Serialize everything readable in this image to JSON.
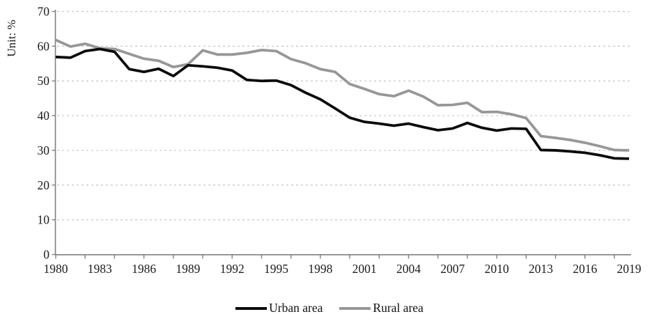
{
  "chart_data": {
    "type": "line",
    "title": "",
    "unit_label": "Unit: %",
    "x_range": [
      1980,
      2019
    ],
    "x": [
      1980,
      1981,
      1982,
      1983,
      1984,
      1985,
      1986,
      1987,
      1988,
      1989,
      1990,
      1991,
      1992,
      1993,
      1994,
      1995,
      1996,
      1997,
      1998,
      1999,
      2000,
      2001,
      2002,
      2003,
      2004,
      2005,
      2006,
      2007,
      2008,
      2009,
      2010,
      2011,
      2012,
      2013,
      2014,
      2015,
      2016,
      2017,
      2018,
      2019
    ],
    "x_tick_labels": [
      "1980",
      "1983",
      "1986",
      "1989",
      "1992",
      "1995",
      "1998",
      "2001",
      "2004",
      "2007",
      "2010",
      "2013",
      "2016",
      "2019"
    ],
    "x_minor_tick_step_years": 2,
    "ylim": [
      0,
      70
    ],
    "ytick_step": 10,
    "y_tick_labels": [
      "0",
      "10",
      "20",
      "30",
      "40",
      "50",
      "60",
      "70"
    ],
    "grid": "horizontal-dashed",
    "legend_position": "bottom-center",
    "series": [
      {
        "name": "Urban area",
        "color": "#0b0b0b",
        "values": [
          56.9,
          56.7,
          58.6,
          59.2,
          58.4,
          53.4,
          52.6,
          53.5,
          51.4,
          54.5,
          54.2,
          53.8,
          53.0,
          50.3,
          50.0,
          50.1,
          48.8,
          46.6,
          44.7,
          42.1,
          39.4,
          38.2,
          37.7,
          37.1,
          37.7,
          36.7,
          35.8,
          36.3,
          37.9,
          36.5,
          35.7,
          36.3,
          36.2,
          30.1,
          30.0,
          29.7,
          29.3,
          28.6,
          27.7,
          27.6
        ]
      },
      {
        "name": "Rural area",
        "color": "#979797",
        "values": [
          61.8,
          59.9,
          60.7,
          59.4,
          59.2,
          57.8,
          56.4,
          55.8,
          54.0,
          54.8,
          58.8,
          57.6,
          57.6,
          58.1,
          58.9,
          58.6,
          56.3,
          55.1,
          53.4,
          52.6,
          49.1,
          47.7,
          46.2,
          45.6,
          47.2,
          45.5,
          43.0,
          43.1,
          43.7,
          41.0,
          41.1,
          40.4,
          39.3,
          34.1,
          33.6,
          33.0,
          32.2,
          31.2,
          30.1,
          30.0
        ]
      }
    ]
  },
  "colors": {
    "background": "#ffffff",
    "grid": "#c6c6c6",
    "axis": "#7f7f7f",
    "text": "#1c1c1c"
  }
}
